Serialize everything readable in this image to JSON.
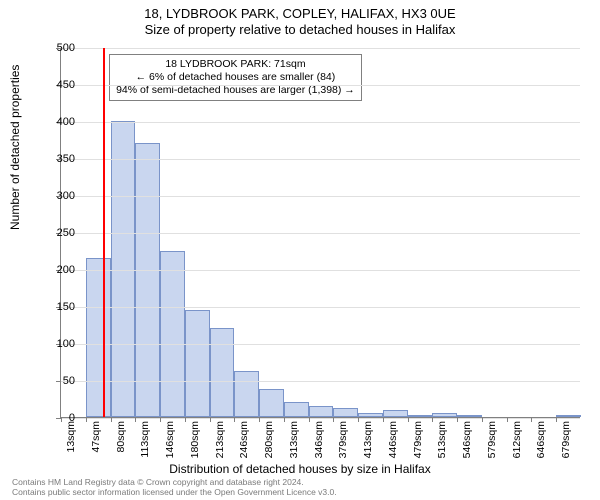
{
  "title": {
    "line1": "18, LYDBROOK PARK, COPLEY, HALIFAX, HX3 0UE",
    "line2": "Size of property relative to detached houses in Halifax"
  },
  "chart": {
    "type": "histogram",
    "background_color": "#ffffff",
    "grid_color": "#e0e0e0",
    "axis_color": "#808080",
    "bar_fill": "#c9d6ef",
    "bar_border": "#7a94c9",
    "marker_color": "#ff0000",
    "ylabel": "Number of detached properties",
    "xlabel": "Distribution of detached houses by size in Halifax",
    "label_fontsize": 12,
    "tick_fontsize": 11,
    "ylim": [
      0,
      500
    ],
    "yticks": [
      0,
      50,
      100,
      150,
      200,
      250,
      300,
      350,
      400,
      450,
      500
    ],
    "xticks": [
      "13sqm",
      "47sqm",
      "80sqm",
      "113sqm",
      "146sqm",
      "180sqm",
      "213sqm",
      "246sqm",
      "280sqm",
      "313sqm",
      "346sqm",
      "379sqm",
      "413sqm",
      "446sqm",
      "479sqm",
      "513sqm",
      "546sqm",
      "579sqm",
      "612sqm",
      "646sqm",
      "679sqm"
    ],
    "values": [
      0,
      215,
      400,
      370,
      225,
      145,
      120,
      62,
      38,
      20,
      15,
      12,
      6,
      9,
      3,
      6,
      3,
      0,
      0,
      0,
      3
    ],
    "marker_index": 1.7,
    "annotation": {
      "lines": [
        "18 LYDBROOK PARK: 71sqm",
        "← 6% of detached houses are smaller (84)",
        "94% of semi-detached houses are larger (1,398) →"
      ]
    }
  },
  "footer": {
    "line1": "Contains HM Land Registry data © Crown copyright and database right 2024.",
    "line2": "Contains public sector information licensed under the Open Government Licence v3.0."
  }
}
